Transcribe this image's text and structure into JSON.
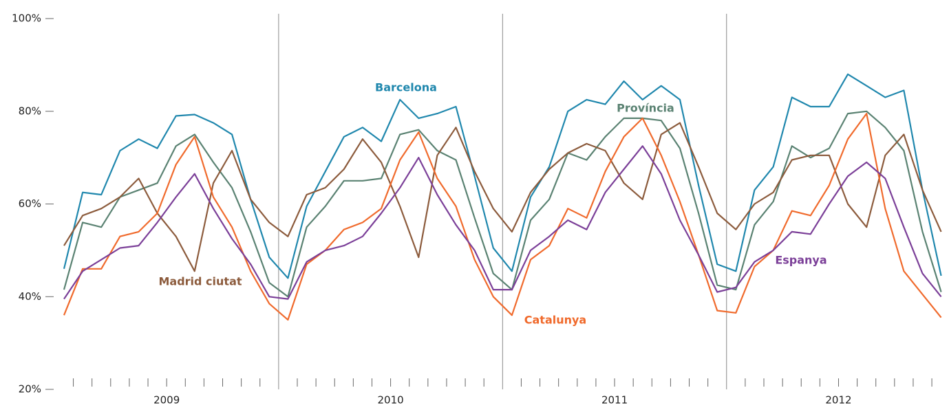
{
  "chart_data": {
    "type": "line",
    "categories": [
      null,
      null,
      null,
      null,
      null,
      null,
      null,
      null,
      null,
      null,
      null,
      null,
      null,
      null,
      null,
      null,
      null,
      null,
      null,
      null,
      null,
      null,
      null,
      null,
      null,
      null,
      null,
      null,
      null,
      null,
      null,
      null,
      null,
      null,
      null,
      null,
      null,
      null,
      null,
      null,
      null,
      null,
      null,
      null,
      null,
      null,
      null,
      null
    ],
    "years": [
      "2009",
      "2010",
      "2011",
      "2012"
    ],
    "ylim": [
      20,
      100
    ],
    "yticks": [
      {
        "value": 20,
        "label": "20%"
      },
      {
        "value": 40,
        "label": "40%"
      },
      {
        "value": 60,
        "label": "60%"
      },
      {
        "value": 80,
        "label": "80%"
      },
      {
        "value": 100,
        "label": "100%"
      }
    ],
    "grid": false,
    "series": [
      {
        "name": "Barcelona",
        "color": "#1f87ad",
        "values": [
          46,
          62.5,
          62,
          71.5,
          74,
          72,
          79,
          79.3,
          77.5,
          75,
          61,
          48.5,
          44,
          59.5,
          67,
          74.5,
          76.5,
          73.5,
          82.5,
          78.5,
          79.5,
          81,
          66,
          50.5,
          45.5,
          61.5,
          68,
          80,
          82.5,
          81.5,
          86.5,
          82.5,
          85.5,
          82.5,
          64,
          47,
          45.5,
          63,
          68,
          83,
          81,
          81,
          88,
          85.5,
          83,
          84.5,
          63,
          44.5
        ]
      },
      {
        "name": "Província",
        "color": "#5a8272",
        "values": [
          41.5,
          56,
          55,
          61.5,
          63,
          64.5,
          72.5,
          75,
          69,
          63.5,
          54,
          43,
          40,
          55,
          59.5,
          65,
          65,
          65.5,
          75,
          76,
          71.5,
          69.5,
          57,
          45,
          41.5,
          56.5,
          61,
          71,
          69.5,
          74.5,
          78.5,
          78.5,
          78,
          72,
          58,
          42.5,
          41.5,
          55.5,
          60.5,
          72.5,
          70,
          72,
          79.5,
          80,
          76.5,
          71.5,
          54,
          41
        ]
      },
      {
        "name": "Madrid ciutat",
        "color": "#8c5b3c",
        "values": [
          51,
          57.5,
          59,
          61.5,
          65.5,
          58,
          53,
          45.5,
          64.5,
          71.5,
          61,
          56,
          53,
          62,
          63.5,
          67.5,
          74,
          69,
          59.5,
          48.5,
          70.5,
          76.5,
          67,
          59,
          54,
          62.5,
          67.5,
          71,
          73,
          71.5,
          64.5,
          61,
          75,
          77.5,
          68,
          58,
          54.5,
          60,
          62.5,
          69.5,
          70.5,
          70.5,
          60,
          55,
          70.5,
          75,
          63,
          54
        ]
      },
      {
        "name": "Catalunya",
        "color": "#f06a2c",
        "values": [
          36,
          46,
          46,
          53,
          54,
          58,
          68.5,
          74.5,
          61.5,
          55,
          45.5,
          38.5,
          35,
          47,
          50,
          54.5,
          56,
          59,
          69.5,
          75.5,
          65.5,
          59.5,
          48,
          40,
          36,
          48,
          51,
          59,
          57,
          67,
          74.5,
          78.5,
          70.5,
          60.5,
          49,
          37,
          36.5,
          46.5,
          50,
          58.5,
          57.5,
          64,
          74,
          79.5,
          59,
          45.5,
          40.5,
          35.5
        ]
      },
      {
        "name": "Espanya",
        "color": "#7b3f98",
        "values": [
          39.5,
          45.5,
          48,
          50.5,
          51,
          56,
          61.5,
          66.5,
          59,
          52.5,
          47,
          40,
          39.5,
          47.5,
          50,
          51,
          53,
          58,
          63.5,
          70,
          62,
          55.5,
          50,
          41.5,
          41.5,
          50,
          53,
          56.5,
          54.5,
          62.5,
          67.5,
          72.5,
          66.5,
          56.5,
          49,
          41,
          42,
          47.5,
          50,
          54,
          53.5,
          60,
          66,
          69,
          65.5,
          55,
          45,
          40
        ]
      }
    ]
  }
}
